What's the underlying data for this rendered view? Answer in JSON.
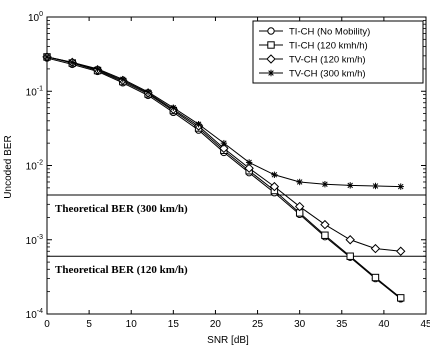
{
  "chart_data": {
    "type": "line",
    "title": "",
    "xlabel": "SNR [dB]",
    "ylabel": "Uncoded BER",
    "xlim": [
      0,
      45
    ],
    "ylim": [
      0.0001,
      1
    ],
    "yscale": "log",
    "grid": false,
    "legend_position": "top-right",
    "x_ticks": [
      "0",
      "5",
      "10",
      "15",
      "20",
      "25",
      "30",
      "35",
      "40",
      "45"
    ],
    "y_ticks": [
      {
        "base": "10",
        "exp": "0",
        "value": 1
      },
      {
        "base": "10",
        "exp": "-1",
        "value": 0.1
      },
      {
        "base": "10",
        "exp": "-2",
        "value": 0.01
      },
      {
        "base": "10",
        "exp": "-3",
        "value": 0.001
      },
      {
        "base": "10",
        "exp": "-4",
        "value": 0.0001
      }
    ],
    "x": [
      0,
      3,
      6,
      9,
      12,
      15,
      18,
      21,
      24,
      27,
      30,
      33,
      36,
      39,
      42
    ],
    "series": [
      {
        "name": "TI-CH (No Mobility)",
        "marker": "circle",
        "values": [
          0.28,
          0.23,
          0.185,
          0.13,
          0.088,
          0.052,
          0.03,
          0.015,
          0.008,
          0.0043,
          0.0022,
          0.0011,
          0.00058,
          0.0003,
          0.00016
        ]
      },
      {
        "name": "TI-CH (120 kmh/h)",
        "marker": "square",
        "values": [
          0.29,
          0.24,
          0.19,
          0.135,
          0.092,
          0.055,
          0.032,
          0.016,
          0.0085,
          0.0046,
          0.0023,
          0.00115,
          0.0006,
          0.00031,
          0.000165
        ]
      },
      {
        "name": "TV-CH (120 km/h)",
        "marker": "diamond",
        "values": [
          0.29,
          0.245,
          0.195,
          0.14,
          0.095,
          0.057,
          0.034,
          0.017,
          0.0092,
          0.0052,
          0.0028,
          0.0016,
          0.001,
          0.00076,
          0.0007
        ]
      },
      {
        "name": "TV-CH (300 km/h)",
        "marker": "star",
        "values": [
          0.29,
          0.245,
          0.2,
          0.145,
          0.098,
          0.06,
          0.036,
          0.02,
          0.011,
          0.0075,
          0.006,
          0.0056,
          0.0054,
          0.0053,
          0.0052
        ]
      }
    ],
    "reference_lines": [
      {
        "label": "Theoretical BER (300 km/h)",
        "value": 0.004
      },
      {
        "label": "Theoretical BER (120 km/h)",
        "value": 0.0006
      }
    ]
  }
}
